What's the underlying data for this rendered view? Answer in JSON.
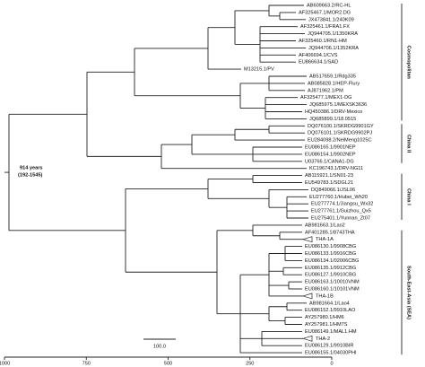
{
  "leaves": [
    "AB609663.2/RC-HL",
    "AF325467.1/MOR2.DG",
    "JX473841.1/240K09",
    "AF325461.1/FRA1.FX",
    "JQ944705.1/1350KRA",
    "AF325460.1/RN1-HM",
    "JQ944706.1/1352KRA",
    "AF406694.1/CVS",
    "EU866634.1/SAD",
    "M13215.1/PV",
    "AB517659.1/Rdg335",
    "AB085828.1/HEP-Flury",
    "AJ871962.1/PM",
    "AF325477.1/MEX1-DG",
    "JQ685975.1/MEXSK3636",
    "HQ450386.1/DRV-Mexico",
    "JQ685899.1/18.0515",
    "DQ076100.1/SKRDG9901GY",
    "DQ076101.1/SKRDG9902PJ",
    "EU284098.2/NeiMeng1025C",
    "EU086165.1/9901NEP",
    "EU086154.1/9902NEP",
    "U03766.1/CANA1-DG",
    "KC196743.1/DRV-NG11",
    "AB115921.1/SN01-23",
    "EU549783.1/SDGL21",
    "DQ849066.1/JSL06",
    "EU277760.1/Hubei_Wh20",
    "EU277774.1/Jiangsu_Wx32",
    "EU277761.1/Guizhou_Qx5",
    "EU275401.1/Yunnan_Zt07",
    "AB981663.1/Lao2",
    "AF401285.1/8743THA",
    "THA-1A",
    "EU086130.1/9908CBG",
    "EU086133.1/9916CBG",
    "EU086134.1/02006CBG",
    "EU086135.1/9912CBG",
    "EU086127.1/9910CBG",
    "EU086163.1/10010VNM",
    "EU086160.1/10101VNM",
    "THA-1B",
    "AB981664.1/Lao4",
    "EU086152.1/9910LAO",
    "AY257980.1/HM6",
    "AY257981.1/HM7S",
    "EU086149.1/MAL1.HM",
    "THA-2",
    "EU086129.1/9910BIR",
    "EU086155.1/04030PHI"
  ],
  "clades": [
    "Cosmopolitan",
    "China II",
    "China I",
    "South-East-Asia (SEA)"
  ],
  "node_annotation": {
    "age": "914 years",
    "interval": "(192-1545)"
  },
  "scale_bar": "100.0",
  "axis_ticks": [
    "1000",
    "750",
    "500",
    "250",
    "0"
  ]
}
